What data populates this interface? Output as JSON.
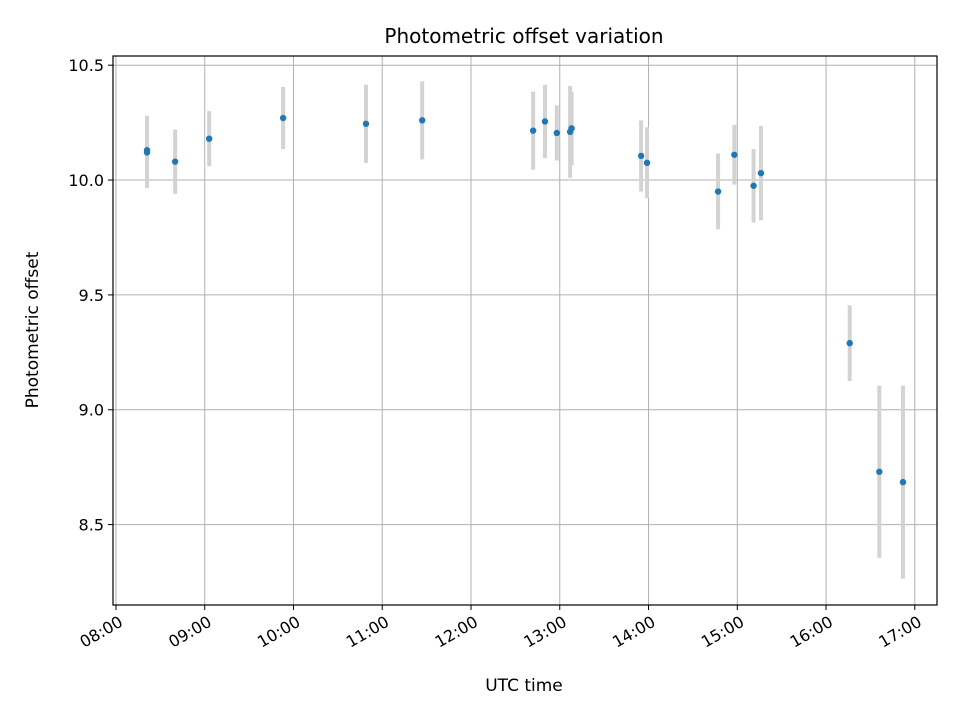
{
  "chart_data": {
    "type": "scatter",
    "title": "Photometric offset variation",
    "xlabel": "UTC time",
    "ylabel": "Photometric offset",
    "x_ticks": [
      "08:00",
      "09:00",
      "10:00",
      "11:00",
      "12:00",
      "13:00",
      "14:00",
      "15:00",
      "16:00",
      "17:00"
    ],
    "y_ticks": [
      "8.5",
      "9.0",
      "9.5",
      "10.0",
      "10.5"
    ],
    "xlim": [
      "07:58",
      "17:15"
    ],
    "ylim": [
      8.15,
      10.54
    ],
    "grid": true,
    "marker_color": "#1f77b4",
    "errorbar_color": "#d3d3d3",
    "series": [
      {
        "points": [
          {
            "x": "08:21",
            "y": 10.12,
            "err": 0.155
          },
          {
            "x": "08:21",
            "y": 10.13,
            "err": 0.15
          },
          {
            "x": "08:40",
            "y": 10.08,
            "err": 0.14
          },
          {
            "x": "09:03",
            "y": 10.18,
            "err": 0.12
          },
          {
            "x": "09:53",
            "y": 10.27,
            "err": 0.135
          },
          {
            "x": "10:49",
            "y": 10.245,
            "err": 0.17
          },
          {
            "x": "11:27",
            "y": 10.26,
            "err": 0.17
          },
          {
            "x": "12:42",
            "y": 10.215,
            "err": 0.17
          },
          {
            "x": "12:50",
            "y": 10.255,
            "err": 0.16
          },
          {
            "x": "12:58",
            "y": 10.205,
            "err": 0.12
          },
          {
            "x": "13:07",
            "y": 10.21,
            "err": 0.2
          },
          {
            "x": "13:08",
            "y": 10.225,
            "err": 0.16
          },
          {
            "x": "13:55",
            "y": 10.105,
            "err": 0.155
          },
          {
            "x": "13:59",
            "y": 10.075,
            "err": 0.155
          },
          {
            "x": "14:47",
            "y": 9.95,
            "err": 0.165
          },
          {
            "x": "14:58",
            "y": 10.11,
            "err": 0.13
          },
          {
            "x": "15:11",
            "y": 9.975,
            "err": 0.16
          },
          {
            "x": "15:16",
            "y": 10.03,
            "err": 0.205
          },
          {
            "x": "16:16",
            "y": 9.29,
            "err": 0.165
          },
          {
            "x": "16:36",
            "y": 8.73,
            "err": 0.375
          },
          {
            "x": "16:52",
            "y": 8.685,
            "err": 0.42
          }
        ]
      }
    ]
  }
}
